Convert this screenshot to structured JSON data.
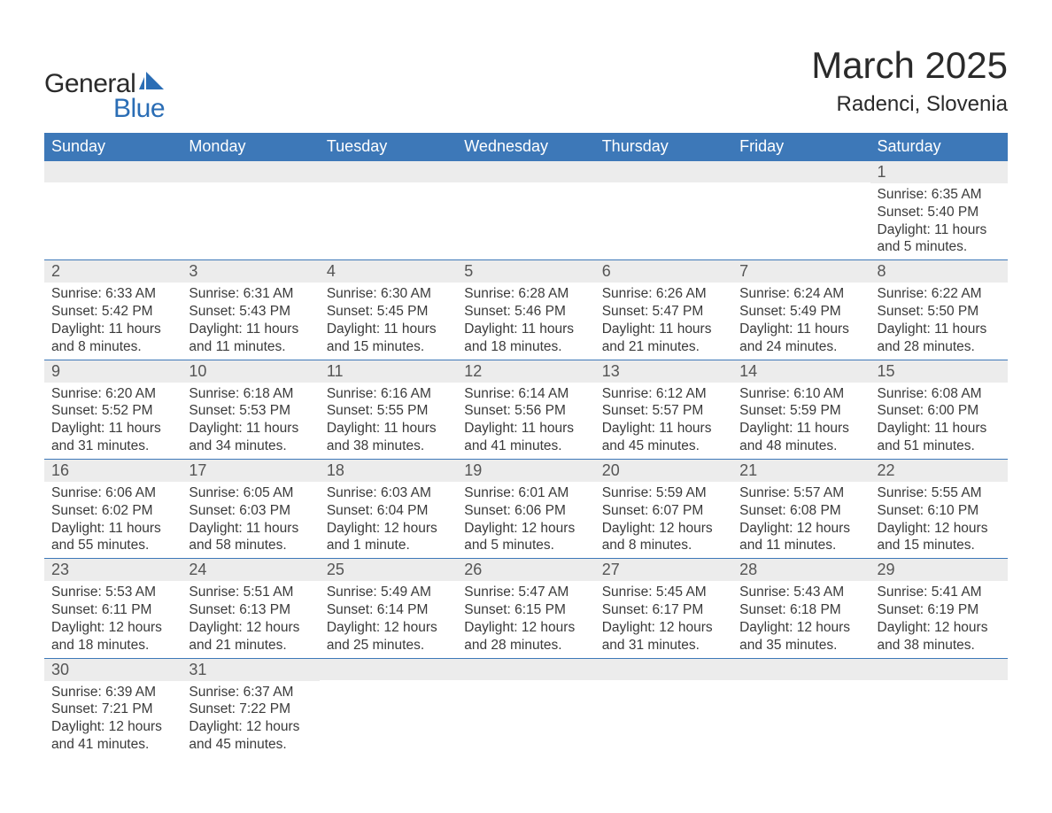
{
  "logo": {
    "general": "General",
    "blue": "Blue"
  },
  "title": "March 2025",
  "location": "Radenci, Slovenia",
  "weekdays": [
    "Sunday",
    "Monday",
    "Tuesday",
    "Wednesday",
    "Thursday",
    "Friday",
    "Saturday"
  ],
  "colors": {
    "header_bg": "#3d78b8",
    "header_text": "#ffffff",
    "daynum_bg": "#ececec",
    "daynum_text": "#555555",
    "body_text": "#3a3a3a",
    "logo_blue": "#2a6db5",
    "row_border": "#3d78b8"
  },
  "weeks": [
    [
      {
        "day": "",
        "sunrise": "",
        "sunset": "",
        "daylight": ""
      },
      {
        "day": "",
        "sunrise": "",
        "sunset": "",
        "daylight": ""
      },
      {
        "day": "",
        "sunrise": "",
        "sunset": "",
        "daylight": ""
      },
      {
        "day": "",
        "sunrise": "",
        "sunset": "",
        "daylight": ""
      },
      {
        "day": "",
        "sunrise": "",
        "sunset": "",
        "daylight": ""
      },
      {
        "day": "",
        "sunrise": "",
        "sunset": "",
        "daylight": ""
      },
      {
        "day": "1",
        "sunrise": "Sunrise: 6:35 AM",
        "sunset": "Sunset: 5:40 PM",
        "daylight": "Daylight: 11 hours and 5 minutes."
      }
    ],
    [
      {
        "day": "2",
        "sunrise": "Sunrise: 6:33 AM",
        "sunset": "Sunset: 5:42 PM",
        "daylight": "Daylight: 11 hours and 8 minutes."
      },
      {
        "day": "3",
        "sunrise": "Sunrise: 6:31 AM",
        "sunset": "Sunset: 5:43 PM",
        "daylight": "Daylight: 11 hours and 11 minutes."
      },
      {
        "day": "4",
        "sunrise": "Sunrise: 6:30 AM",
        "sunset": "Sunset: 5:45 PM",
        "daylight": "Daylight: 11 hours and 15 minutes."
      },
      {
        "day": "5",
        "sunrise": "Sunrise: 6:28 AM",
        "sunset": "Sunset: 5:46 PM",
        "daylight": "Daylight: 11 hours and 18 minutes."
      },
      {
        "day": "6",
        "sunrise": "Sunrise: 6:26 AM",
        "sunset": "Sunset: 5:47 PM",
        "daylight": "Daylight: 11 hours and 21 minutes."
      },
      {
        "day": "7",
        "sunrise": "Sunrise: 6:24 AM",
        "sunset": "Sunset: 5:49 PM",
        "daylight": "Daylight: 11 hours and 24 minutes."
      },
      {
        "day": "8",
        "sunrise": "Sunrise: 6:22 AM",
        "sunset": "Sunset: 5:50 PM",
        "daylight": "Daylight: 11 hours and 28 minutes."
      }
    ],
    [
      {
        "day": "9",
        "sunrise": "Sunrise: 6:20 AM",
        "sunset": "Sunset: 5:52 PM",
        "daylight": "Daylight: 11 hours and 31 minutes."
      },
      {
        "day": "10",
        "sunrise": "Sunrise: 6:18 AM",
        "sunset": "Sunset: 5:53 PM",
        "daylight": "Daylight: 11 hours and 34 minutes."
      },
      {
        "day": "11",
        "sunrise": "Sunrise: 6:16 AM",
        "sunset": "Sunset: 5:55 PM",
        "daylight": "Daylight: 11 hours and 38 minutes."
      },
      {
        "day": "12",
        "sunrise": "Sunrise: 6:14 AM",
        "sunset": "Sunset: 5:56 PM",
        "daylight": "Daylight: 11 hours and 41 minutes."
      },
      {
        "day": "13",
        "sunrise": "Sunrise: 6:12 AM",
        "sunset": "Sunset: 5:57 PM",
        "daylight": "Daylight: 11 hours and 45 minutes."
      },
      {
        "day": "14",
        "sunrise": "Sunrise: 6:10 AM",
        "sunset": "Sunset: 5:59 PM",
        "daylight": "Daylight: 11 hours and 48 minutes."
      },
      {
        "day": "15",
        "sunrise": "Sunrise: 6:08 AM",
        "sunset": "Sunset: 6:00 PM",
        "daylight": "Daylight: 11 hours and 51 minutes."
      }
    ],
    [
      {
        "day": "16",
        "sunrise": "Sunrise: 6:06 AM",
        "sunset": "Sunset: 6:02 PM",
        "daylight": "Daylight: 11 hours and 55 minutes."
      },
      {
        "day": "17",
        "sunrise": "Sunrise: 6:05 AM",
        "sunset": "Sunset: 6:03 PM",
        "daylight": "Daylight: 11 hours and 58 minutes."
      },
      {
        "day": "18",
        "sunrise": "Sunrise: 6:03 AM",
        "sunset": "Sunset: 6:04 PM",
        "daylight": "Daylight: 12 hours and 1 minute."
      },
      {
        "day": "19",
        "sunrise": "Sunrise: 6:01 AM",
        "sunset": "Sunset: 6:06 PM",
        "daylight": "Daylight: 12 hours and 5 minutes."
      },
      {
        "day": "20",
        "sunrise": "Sunrise: 5:59 AM",
        "sunset": "Sunset: 6:07 PM",
        "daylight": "Daylight: 12 hours and 8 minutes."
      },
      {
        "day": "21",
        "sunrise": "Sunrise: 5:57 AM",
        "sunset": "Sunset: 6:08 PM",
        "daylight": "Daylight: 12 hours and 11 minutes."
      },
      {
        "day": "22",
        "sunrise": "Sunrise: 5:55 AM",
        "sunset": "Sunset: 6:10 PM",
        "daylight": "Daylight: 12 hours and 15 minutes."
      }
    ],
    [
      {
        "day": "23",
        "sunrise": "Sunrise: 5:53 AM",
        "sunset": "Sunset: 6:11 PM",
        "daylight": "Daylight: 12 hours and 18 minutes."
      },
      {
        "day": "24",
        "sunrise": "Sunrise: 5:51 AM",
        "sunset": "Sunset: 6:13 PM",
        "daylight": "Daylight: 12 hours and 21 minutes."
      },
      {
        "day": "25",
        "sunrise": "Sunrise: 5:49 AM",
        "sunset": "Sunset: 6:14 PM",
        "daylight": "Daylight: 12 hours and 25 minutes."
      },
      {
        "day": "26",
        "sunrise": "Sunrise: 5:47 AM",
        "sunset": "Sunset: 6:15 PM",
        "daylight": "Daylight: 12 hours and 28 minutes."
      },
      {
        "day": "27",
        "sunrise": "Sunrise: 5:45 AM",
        "sunset": "Sunset: 6:17 PM",
        "daylight": "Daylight: 12 hours and 31 minutes."
      },
      {
        "day": "28",
        "sunrise": "Sunrise: 5:43 AM",
        "sunset": "Sunset: 6:18 PM",
        "daylight": "Daylight: 12 hours and 35 minutes."
      },
      {
        "day": "29",
        "sunrise": "Sunrise: 5:41 AM",
        "sunset": "Sunset: 6:19 PM",
        "daylight": "Daylight: 12 hours and 38 minutes."
      }
    ],
    [
      {
        "day": "30",
        "sunrise": "Sunrise: 6:39 AM",
        "sunset": "Sunset: 7:21 PM",
        "daylight": "Daylight: 12 hours and 41 minutes."
      },
      {
        "day": "31",
        "sunrise": "Sunrise: 6:37 AM",
        "sunset": "Sunset: 7:22 PM",
        "daylight": "Daylight: 12 hours and 45 minutes."
      },
      {
        "day": "",
        "sunrise": "",
        "sunset": "",
        "daylight": ""
      },
      {
        "day": "",
        "sunrise": "",
        "sunset": "",
        "daylight": ""
      },
      {
        "day": "",
        "sunrise": "",
        "sunset": "",
        "daylight": ""
      },
      {
        "day": "",
        "sunrise": "",
        "sunset": "",
        "daylight": ""
      },
      {
        "day": "",
        "sunrise": "",
        "sunset": "",
        "daylight": ""
      }
    ]
  ]
}
